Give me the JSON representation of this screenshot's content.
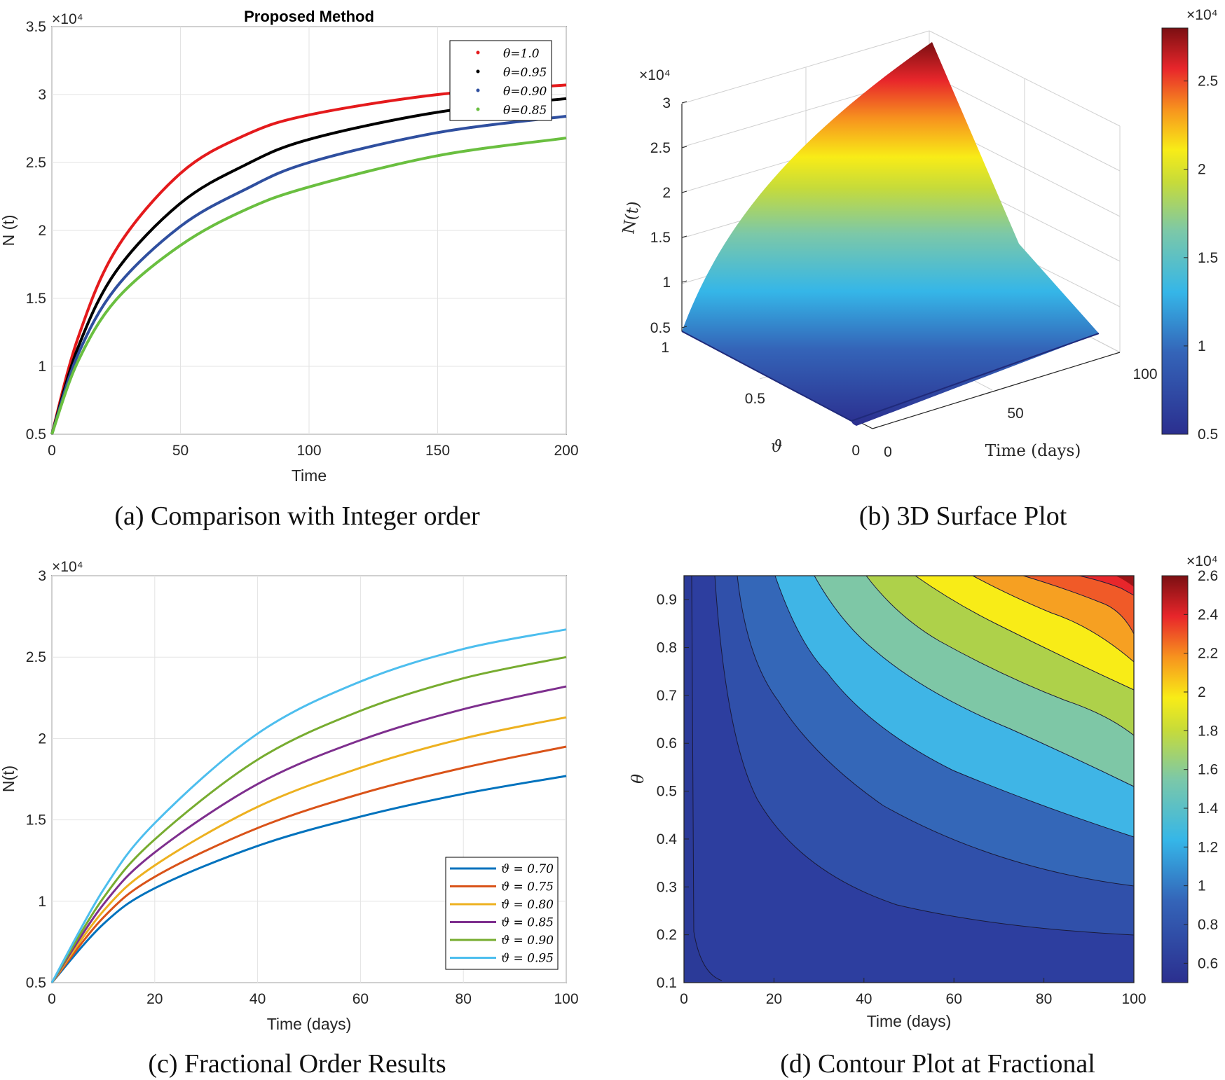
{
  "chart_data": [
    {
      "panel": "a",
      "type": "line",
      "title": "Proposed Method",
      "xlabel": "Time",
      "ylabel": "N (t)",
      "xlim": [
        0,
        200
      ],
      "ylim": [
        5000,
        35000
      ],
      "x_ticks": [
        "0",
        "50",
        "100",
        "150",
        "200"
      ],
      "y_ticks": [
        "0.5",
        "1",
        "1.5",
        "2",
        "2.5",
        "3",
        "3.5"
      ],
      "y_exponent": "×10⁴",
      "legend_position": "top-right",
      "grid": true,
      "x": [
        0,
        10,
        25,
        50,
        75,
        100,
        150,
        200
      ],
      "series": [
        {
          "name": "θ=1.0",
          "color": "#e41a1c",
          "values": [
            5000,
            12000,
            18600,
            24200,
            27000,
            28500,
            30000,
            30700
          ]
        },
        {
          "name": "θ=0.95",
          "color": "#000000",
          "values": [
            5000,
            11300,
            17000,
            22000,
            24800,
            26700,
            28700,
            29700
          ]
        },
        {
          "name": "θ=0.90",
          "color": "#2f4f9f",
          "values": [
            5000,
            10800,
            15800,
            20300,
            23000,
            25000,
            27200,
            28400
          ]
        },
        {
          "name": "θ=0.85",
          "color": "#6abf40",
          "values": [
            5000,
            10300,
            14900,
            18900,
            21500,
            23200,
            25500,
            26800
          ]
        }
      ],
      "caption": "(a) Comparison with Integer order"
    },
    {
      "panel": "b",
      "type": "surface",
      "xlabel": "Time (days)",
      "ylabel": "ϑ",
      "zlabel": "N(t)",
      "x_ticks": [
        "0",
        "50",
        "100"
      ],
      "y_ticks": [
        "0",
        "0.5",
        "1"
      ],
      "z_ticks": [
        "0.5",
        "1",
        "1.5",
        "2",
        "2.5",
        "3"
      ],
      "z_exponent": "×10⁴",
      "zlim": [
        5000,
        30000
      ],
      "colorbar": {
        "ticks": [
          "0.5",
          "1",
          "1.5",
          "2",
          "2.5"
        ],
        "exponent": "×10⁴",
        "range": [
          5000,
          28000
        ]
      },
      "caption": "(b) 3D Surface Plot"
    },
    {
      "panel": "c",
      "type": "line",
      "xlabel": "Time (days)",
      "ylabel": "N(t)",
      "xlim": [
        0,
        100
      ],
      "ylim": [
        5000,
        30000
      ],
      "x_ticks": [
        "0",
        "20",
        "40",
        "60",
        "80",
        "100"
      ],
      "y_ticks": [
        "0.5",
        "1",
        "1.5",
        "2",
        "2.5",
        "3"
      ],
      "y_exponent": "×10⁴",
      "legend_position": "bottom-right",
      "grid": true,
      "x": [
        0,
        10,
        20,
        40,
        60,
        80,
        100
      ],
      "series": [
        {
          "name": "ϑ = 0.70",
          "color": "#0072bd",
          "values": [
            5000,
            8600,
            10800,
            13400,
            15200,
            16600,
            17700
          ]
        },
        {
          "name": "ϑ = 0.75",
          "color": "#d95319",
          "values": [
            5000,
            9000,
            11500,
            14500,
            16600,
            18200,
            19500
          ]
        },
        {
          "name": "ϑ = 0.80",
          "color": "#edb120",
          "values": [
            5000,
            9400,
            12200,
            15800,
            18200,
            20000,
            21300
          ]
        },
        {
          "name": "ϑ = 0.85",
          "color": "#7e2f8e",
          "values": [
            5000,
            9800,
            13000,
            17200,
            19900,
            21800,
            23200
          ]
        },
        {
          "name": "ϑ = 0.90",
          "color": "#77ac30",
          "values": [
            5000,
            10200,
            13800,
            18700,
            21700,
            23700,
            25000
          ]
        },
        {
          "name": "ϑ = 0.95",
          "color": "#4dbeee",
          "values": [
            5000,
            10700,
            14800,
            20300,
            23500,
            25500,
            26700
          ]
        }
      ],
      "caption": "(c) Fractional Order Results"
    },
    {
      "panel": "d",
      "type": "contour",
      "xlabel": "Time (days)",
      "ylabel": "θ",
      "xlim": [
        0,
        100
      ],
      "ylim": [
        0.1,
        0.95
      ],
      "x_ticks": [
        "0",
        "20",
        "40",
        "60",
        "80",
        "100"
      ],
      "y_ticks": [
        "0.1",
        "0.2",
        "0.3",
        "0.4",
        "0.5",
        "0.6",
        "0.7",
        "0.8",
        "0.9"
      ],
      "colorbar": {
        "ticks": [
          "0.6",
          "0.8",
          "1",
          "1.2",
          "1.4",
          "1.6",
          "1.8",
          "2",
          "2.2",
          "2.4",
          "2.6"
        ],
        "exponent": "×10⁴",
        "range": [
          5000,
          26000
        ]
      },
      "caption": "(d) Contour Plot at Fractional"
    }
  ]
}
